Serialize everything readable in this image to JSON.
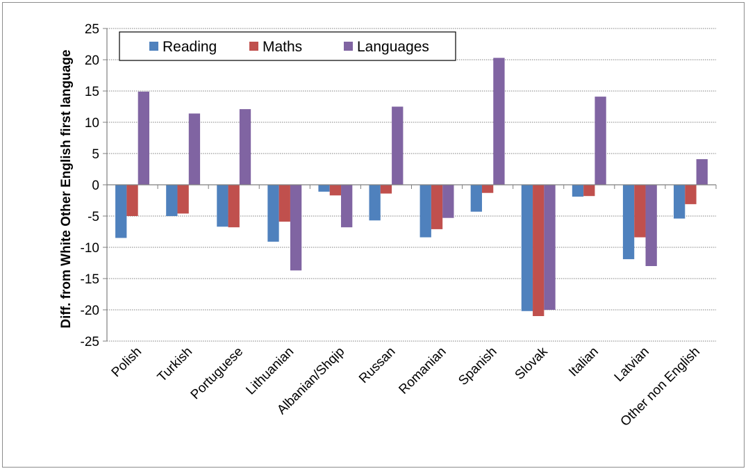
{
  "chart_data": {
    "type": "bar",
    "title": "",
    "xlabel": "",
    "ylabel": "Diff. from White Other English first language",
    "ylim": [
      -25,
      25
    ],
    "yticks": [
      25,
      20,
      15,
      10,
      5,
      0,
      -5,
      -10,
      -15,
      -20,
      -25
    ],
    "grid": true,
    "legend_position": "top",
    "categories": [
      "Polish",
      "Turkish",
      "Portuguese",
      "Lithuanian",
      "Albanian/Shqip",
      "Russan",
      "Romanian",
      "Spanish",
      "Slovak",
      "Italian",
      "Latvian",
      "Other non English"
    ],
    "series": [
      {
        "name": "Reading",
        "color": "#4f81bd",
        "values": [
          -8.5,
          -5.0,
          -6.7,
          -9.1,
          -1.1,
          -5.7,
          -8.4,
          -4.3,
          -20.2,
          -1.9,
          -11.9,
          -5.4
        ]
      },
      {
        "name": "Maths",
        "color": "#c0504d",
        "values": [
          -5.0,
          -4.6,
          -6.8,
          -5.9,
          -1.7,
          -1.4,
          -7.1,
          -1.3,
          -21.0,
          -1.8,
          -8.4,
          -3.1
        ]
      },
      {
        "name": "Languages",
        "color": "#8064a2",
        "values": [
          14.9,
          11.4,
          12.1,
          -13.7,
          -6.8,
          12.5,
          -5.3,
          20.3,
          -20.0,
          14.1,
          -13.0,
          4.1
        ]
      }
    ]
  }
}
